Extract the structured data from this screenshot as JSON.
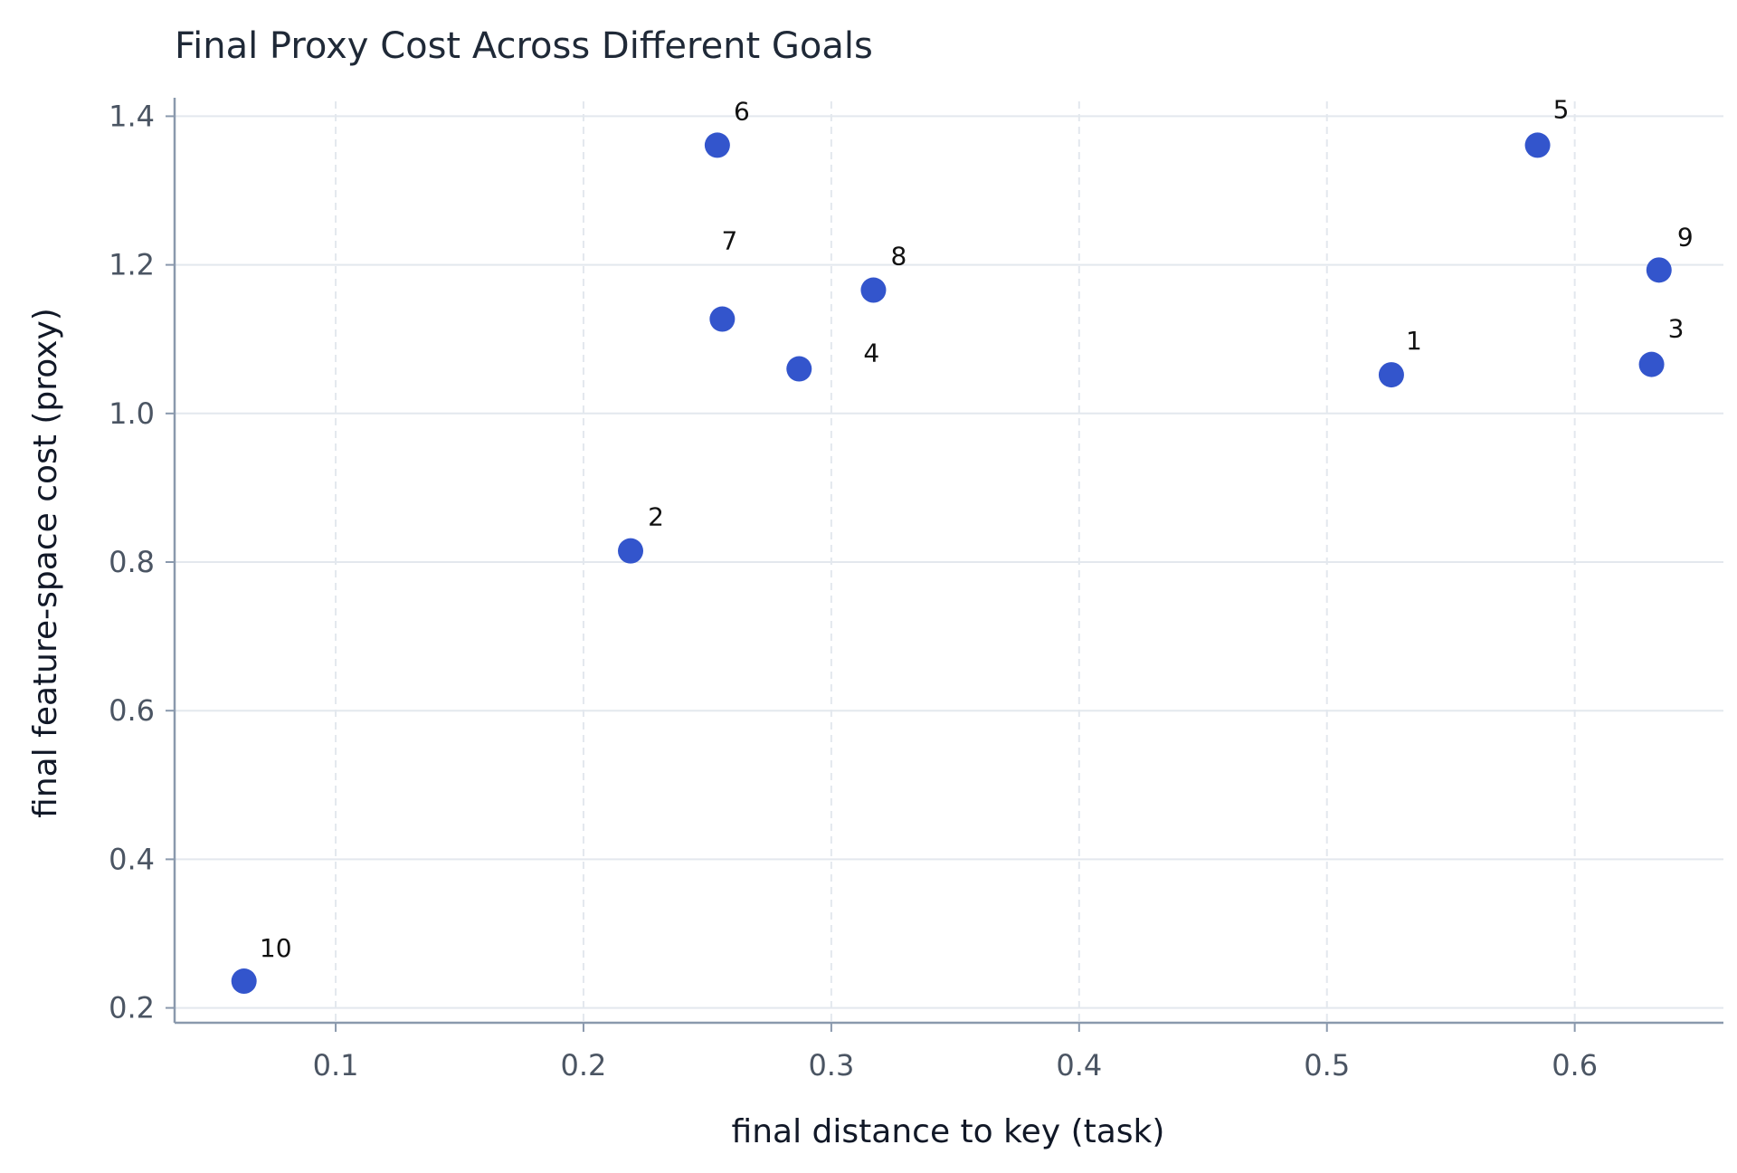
{
  "chart_data": {
    "type": "scatter",
    "title": "Final Proxy Cost Across Different Goals",
    "xlabel": "final distance to key (task)",
    "ylabel": "final feature-space cost (proxy)",
    "xlim": [
      0.035,
      0.66
    ],
    "ylim": [
      0.18,
      1.42
    ],
    "xticks": [
      0.1,
      0.2,
      0.3,
      0.4,
      0.5,
      0.6
    ],
    "xtick_labels": [
      "0.1",
      "0.2",
      "0.3",
      "0.4",
      "0.5",
      "0.6"
    ],
    "yticks": [
      0.2,
      0.4,
      0.6,
      0.8,
      1.0,
      1.2,
      1.4
    ],
    "ytick_labels": [
      "0.2",
      "0.4",
      "0.6",
      "0.8",
      "1.0",
      "1.2",
      "1.4"
    ],
    "grid": true,
    "point_color": "#3355cc",
    "points": [
      {
        "label": "1",
        "x": 0.526,
        "y": 1.052
      },
      {
        "label": "2",
        "x": 0.219,
        "y": 0.815
      },
      {
        "label": "3",
        "x": 0.631,
        "y": 1.066
      },
      {
        "label": "4",
        "x": 0.287,
        "y": 1.06
      },
      {
        "label": "5",
        "x": 0.585,
        "y": 1.361
      },
      {
        "label": "6",
        "x": 0.254,
        "y": 1.361
      },
      {
        "label": "7",
        "x": 0.256,
        "y": 1.127
      },
      {
        "label": "8",
        "x": 0.317,
        "y": 1.166
      },
      {
        "label": "9",
        "x": 0.634,
        "y": 1.193
      },
      {
        "label": "10",
        "x": 0.063,
        "y": 0.236
      }
    ]
  }
}
